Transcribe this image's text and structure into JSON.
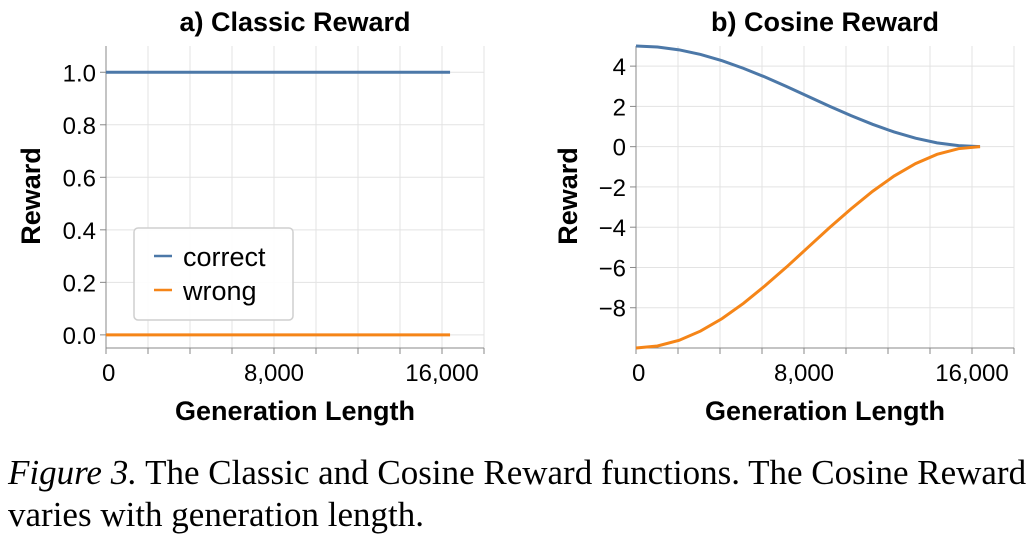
{
  "chart_data": [
    {
      "type": "line",
      "title": "a) Classic Reward",
      "xlabel": "Generation Length",
      "ylabel": "Reward",
      "xlim": [
        0,
        18000
      ],
      "ylim": [
        -0.05,
        1.1
      ],
      "xticks": [
        0,
        8000,
        16000
      ],
      "xtick_labels": [
        "0",
        "8,000",
        "16,000"
      ],
      "yticks": [
        0,
        0.2,
        0.4,
        0.6,
        0.8,
        1.0
      ],
      "ytick_labels": [
        "0.0",
        "0.2",
        "0.4",
        "0.6",
        "0.8",
        "1.0"
      ],
      "grid": true,
      "legend": "center-left",
      "series": [
        {
          "name": "correct",
          "color": "#4c78a8",
          "x": [
            0,
            16384
          ],
          "y": [
            1.0,
            1.0
          ]
        },
        {
          "name": "wrong",
          "color": "#f58518",
          "x": [
            0,
            16384
          ],
          "y": [
            0.0,
            0.0
          ]
        }
      ]
    },
    {
      "type": "line",
      "title": "b) Cosine Reward",
      "xlabel": "Generation Length",
      "ylabel": "Reward",
      "xlim": [
        0,
        18000
      ],
      "ylim": [
        -10,
        5
      ],
      "xticks": [
        0,
        8000,
        16000
      ],
      "xtick_labels": [
        "0",
        "8,000",
        "16,000"
      ],
      "yticks": [
        -8,
        -6,
        -4,
        -2,
        0,
        2,
        4
      ],
      "ytick_labels": [
        "−8",
        "−6",
        "−4",
        "−2",
        "0",
        "2",
        "4"
      ],
      "grid": true,
      "series": [
        {
          "color": "#4c78a8",
          "x": [
            0,
            1024,
            2048,
            3072,
            4096,
            5120,
            6144,
            7168,
            8192,
            9216,
            10240,
            11264,
            12288,
            13312,
            14336,
            15360,
            16384
          ],
          "y": [
            5.0,
            4.95,
            4.81,
            4.58,
            4.27,
            3.89,
            3.46,
            2.99,
            2.5,
            2.01,
            1.54,
            1.11,
            0.73,
            0.42,
            0.19,
            0.05,
            0.0
          ]
        },
        {
          "color": "#f58518",
          "x": [
            0,
            1024,
            2048,
            3072,
            4096,
            5120,
            6144,
            7168,
            8192,
            9216,
            10240,
            11264,
            12288,
            13312,
            14336,
            15360,
            16384
          ],
          "y": [
            -10.0,
            -9.9,
            -9.62,
            -9.16,
            -8.54,
            -7.78,
            -6.91,
            -5.98,
            -5.0,
            -4.02,
            -3.09,
            -2.22,
            -1.46,
            -0.84,
            -0.38,
            -0.1,
            0.0
          ]
        }
      ]
    }
  ],
  "caption": {
    "label": "Figure 3.",
    "text": " The Classic and Cosine Reward functions. The Cosine Reward varies with generation length."
  }
}
